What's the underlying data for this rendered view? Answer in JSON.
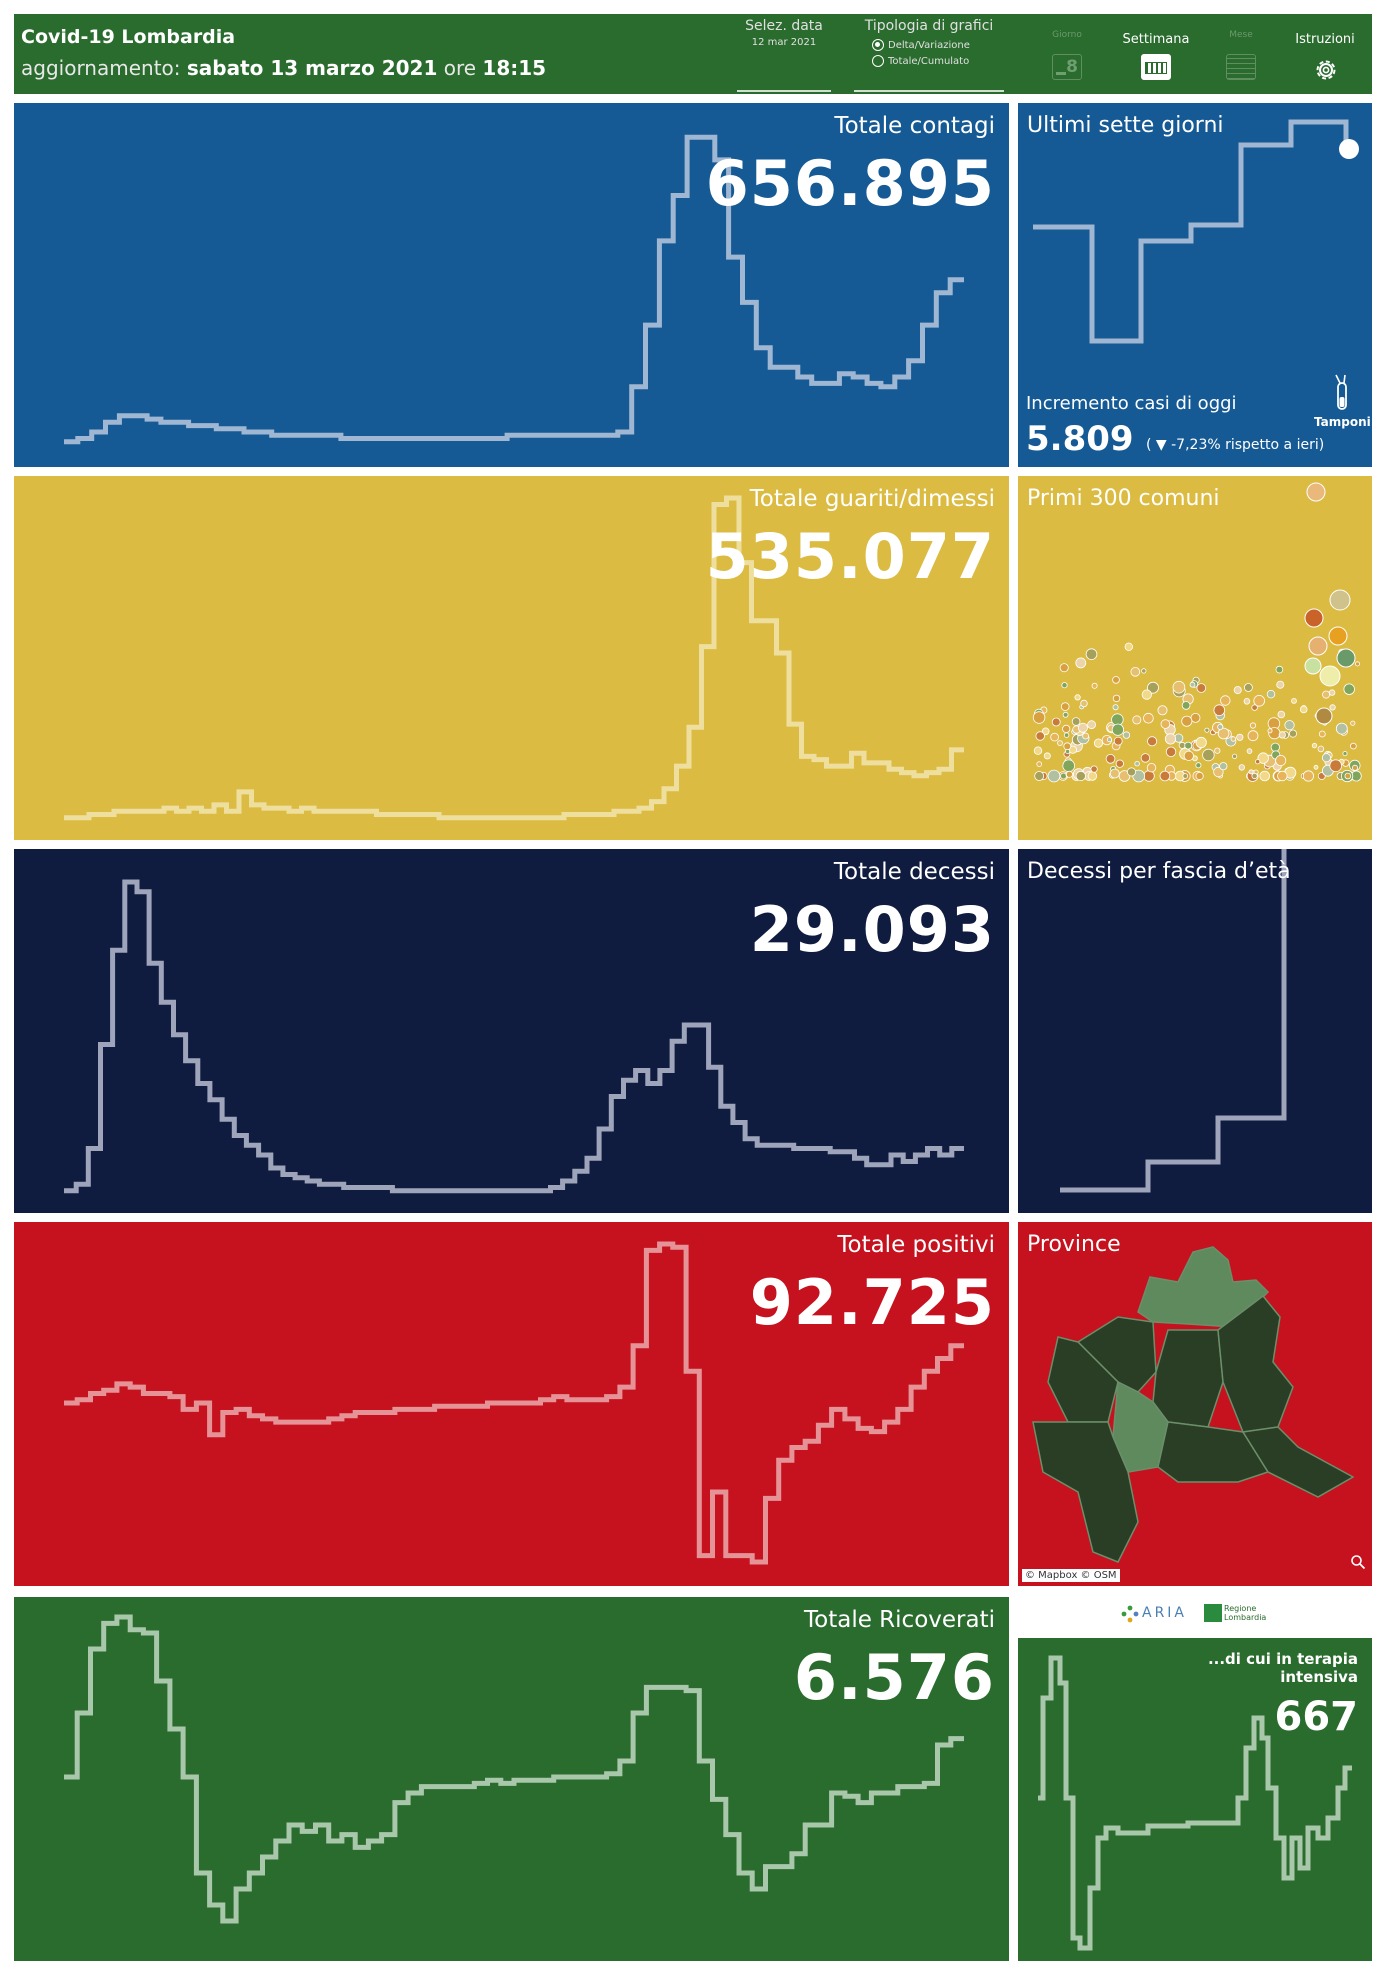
{
  "header": {
    "title": "Covid-19 Lombardia",
    "updated_prefix": "aggiornamento:",
    "updated_date": "sabato 13 marzo 2021",
    "updated_ore": "ore",
    "updated_time": "18:15",
    "date_label": "Selez. data",
    "date_value": "12 mar 2021",
    "chart_type_label": "Tipologia di grafici",
    "chart_type_options": [
      "Delta/Variazione",
      "Totale/Cumulato"
    ],
    "chart_type_selected": "Delta/Variazione",
    "nav": [
      {
        "label": "Giorno",
        "icon": "calendar-day-icon",
        "day": "8",
        "active": false
      },
      {
        "label": "Settimana",
        "icon": "calendar-week-icon",
        "active": true
      },
      {
        "label": "Mese",
        "icon": "calendar-month-icon",
        "active": false
      },
      {
        "label": "Istruzioni",
        "icon": "gear-icon",
        "active": true
      }
    ]
  },
  "panels": {
    "contagi": {
      "title": "Totale contagi",
      "value": "656.895",
      "color": "#155a94"
    },
    "guariti": {
      "title": "Totale guariti/dimessi",
      "value": "535.077",
      "color": "#dbbb42"
    },
    "decessi": {
      "title": "Totale decessi",
      "value": "29.093",
      "color": "#0f1b3f"
    },
    "positivi": {
      "title": "Totale positivi",
      "value": "92.725",
      "color": "#c5121e"
    },
    "ricoverati": {
      "title": "Totale Ricoverati",
      "value": "6.576",
      "color": "#2a6b2e"
    }
  },
  "side": {
    "sette": {
      "title": "Ultimi sette giorni",
      "incremento_label": "Incremento casi di oggi",
      "incremento_value": "5.809",
      "incremento_delta": "( ▼ -7,23% rispetto a  ieri)",
      "tamponi_label": "Tamponi",
      "tamponi_icon": "test-tube-icon"
    },
    "comuni": {
      "title": "Primi 300 comuni"
    },
    "fascia": {
      "title": "Decessi per fascia d’età"
    },
    "province": {
      "title": "Province",
      "attribution": "© Mapbox © OSM",
      "zoom_icon": "zoom-icon"
    },
    "logos": {
      "aria": "ARIA",
      "regione": "Regione Lombardia"
    },
    "terapia": {
      "title": "...di cui in terapia intensiva",
      "value": "667"
    }
  },
  "series": {
    "contagi": [
      1,
      2,
      4,
      7,
      9,
      9,
      8,
      7,
      7,
      6,
      6,
      5,
      5,
      4,
      4,
      3,
      3,
      3,
      3,
      3,
      2,
      2,
      2,
      2,
      2,
      2,
      2,
      2,
      2,
      2,
      2,
      2,
      3,
      3,
      3,
      3,
      3,
      3,
      3,
      3,
      4,
      18,
      37,
      63,
      77,
      95,
      95,
      88,
      58,
      44,
      30,
      24,
      24,
      21,
      19,
      19,
      22,
      21,
      19,
      18,
      21,
      26,
      37,
      47,
      51
    ],
    "guariti": [
      1,
      1,
      2,
      2,
      3,
      3,
      3,
      3,
      4,
      3,
      4,
      3,
      5,
      3,
      9,
      5,
      4,
      4,
      3,
      4,
      3,
      3,
      3,
      3,
      3,
      2,
      2,
      2,
      2,
      2,
      1,
      1,
      1,
      1,
      1,
      1,
      1,
      1,
      1,
      1,
      2,
      2,
      2,
      2,
      3,
      3,
      4,
      6,
      10,
      17,
      29,
      54,
      98,
      100,
      80,
      62,
      62,
      52,
      30,
      20,
      19,
      17,
      17,
      21,
      18,
      18,
      16,
      15,
      14,
      15,
      16,
      22
    ],
    "decessi": [
      1,
      3,
      14,
      46,
      75,
      96,
      93,
      71,
      59,
      49,
      41,
      34,
      29,
      23,
      18,
      15,
      12,
      8,
      6,
      5,
      4,
      3,
      3,
      2,
      2,
      2,
      2,
      1,
      1,
      1,
      1,
      1,
      1,
      1,
      1,
      1,
      1,
      1,
      1,
      1,
      2,
      4,
      7,
      11,
      20,
      30,
      35,
      38,
      34,
      38,
      47,
      52,
      52,
      39,
      27,
      22,
      17,
      15,
      15,
      15,
      14,
      14,
      14,
      13,
      13,
      11,
      9,
      9,
      12,
      10,
      12,
      14,
      12,
      14
    ],
    "positivi": [
      50,
      51,
      53,
      54,
      56,
      55,
      53,
      53,
      52,
      48,
      50,
      40,
      47,
      48,
      46,
      45,
      44,
      44,
      44,
      44,
      45,
      46,
      47,
      47,
      47,
      48,
      48,
      48,
      49,
      49,
      49,
      49,
      50,
      50,
      50,
      50,
      51,
      52,
      51,
      51,
      51,
      52,
      55,
      68,
      98,
      100,
      99,
      60,
      2,
      22,
      2,
      2,
      0,
      20,
      32,
      36,
      38,
      43,
      48,
      45,
      42,
      41,
      44,
      48,
      55,
      60,
      64,
      68
    ],
    "ricoverati": [
      50,
      70,
      90,
      98,
      100,
      96,
      95,
      80,
      65,
      50,
      20,
      10,
      5,
      15,
      20,
      25,
      30,
      35,
      33,
      35,
      30,
      32,
      28,
      30,
      32,
      42,
      45,
      47,
      47,
      47,
      47,
      48,
      49,
      48,
      49,
      49,
      49,
      50,
      50,
      50,
      50,
      51,
      55,
      70,
      78,
      78,
      78,
      77,
      55,
      43,
      32,
      20,
      15,
      22,
      22,
      26,
      35,
      35,
      45,
      44,
      42,
      45,
      45,
      47,
      47,
      48,
      60,
      62
    ]
  }
}
